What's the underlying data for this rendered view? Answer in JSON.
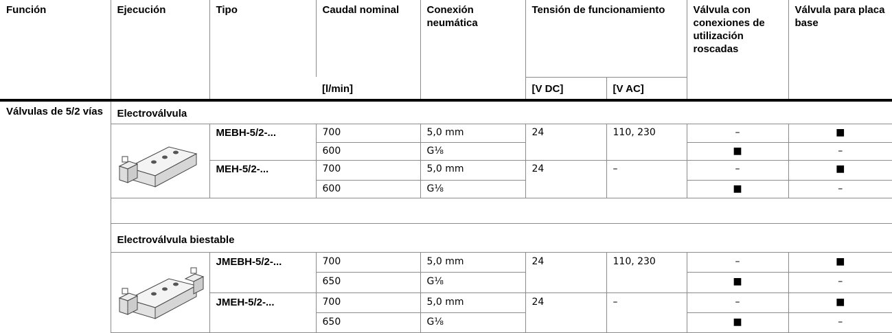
{
  "header": {
    "funcion": "Función",
    "ejecucion": "Ejecución",
    "tipo": "Tipo",
    "caudal": "Caudal nominal",
    "caudal_unit": "[l/min]",
    "conexion": "Conexión neumática",
    "tension": "Tensión de funcionamiento",
    "tension_dc": "[V DC]",
    "tension_ac": "[V AC]",
    "valvula_roscadas": "Válvula con conexiones de utilización roscadas",
    "valvula_placa": "Válvula para placa base"
  },
  "body": {
    "funcion": "Válvulas de 5/2 vías",
    "groups": [
      {
        "title": "Electroválvula",
        "types": [
          {
            "tipo": "MEBH-5/2-...",
            "tension_dc": 24,
            "tension_ac": "110, 230",
            "rows": [
              {
                "caudal": 700,
                "conexion": "5,0 mm",
                "roscadas": "–",
                "placa": "■"
              },
              {
                "caudal": 600,
                "conexion": "G⅛",
                "roscadas": "■",
                "placa": "–"
              }
            ]
          },
          {
            "tipo": "MEH-5/2-...",
            "tension_dc": 24,
            "tension_ac": "–",
            "rows": [
              {
                "caudal": 700,
                "conexion": "5,0 mm",
                "roscadas": "–",
                "placa": "■"
              },
              {
                "caudal": 600,
                "conexion": "G⅛",
                "roscadas": "■",
                "placa": "–"
              }
            ]
          }
        ]
      },
      {
        "title": "Electroválvula biestable",
        "types": [
          {
            "tipo": "JMEBH-5/2-...",
            "tension_dc": 24,
            "tension_ac": "110, 230",
            "rows": [
              {
                "caudal": 700,
                "conexion": "5,0 mm",
                "roscadas": "–",
                "placa": "■"
              },
              {
                "caudal": 650,
                "conexion": "G⅛",
                "roscadas": "■",
                "placa": "–"
              }
            ]
          },
          {
            "tipo": "JMEH-5/2-...",
            "tension_dc": 24,
            "tension_ac": "–",
            "rows": [
              {
                "caudal": 700,
                "conexion": "5,0 mm",
                "roscadas": "–",
                "placa": "■"
              },
              {
                "caudal": 650,
                "conexion": "G⅛",
                "roscadas": "■",
                "placa": "–"
              }
            ]
          }
        ]
      }
    ]
  }
}
